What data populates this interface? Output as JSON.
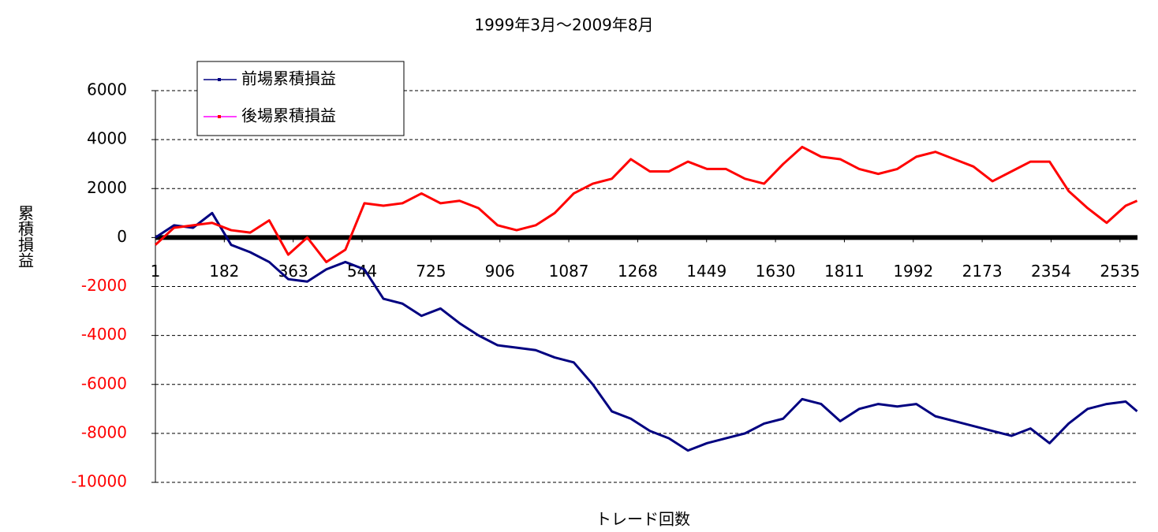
{
  "chart_data": {
    "type": "line",
    "title": "1999年3月〜2009年8月",
    "xlabel": "トレード回数",
    "ylabel": "累積損益",
    "x": [
      1,
      50,
      100,
      150,
      200,
      250,
      300,
      350,
      400,
      450,
      500,
      550,
      600,
      650,
      700,
      750,
      800,
      850,
      900,
      950,
      1000,
      1050,
      1100,
      1150,
      1200,
      1250,
      1300,
      1350,
      1400,
      1450,
      1500,
      1550,
      1600,
      1650,
      1700,
      1750,
      1800,
      1850,
      1900,
      1950,
      2000,
      2050,
      2100,
      2150,
      2200,
      2250,
      2300,
      2350,
      2400,
      2450,
      2500,
      2550,
      2580
    ],
    "series": [
      {
        "name": "前場累積損益",
        "color": "#000080",
        "values": [
          0,
          500,
          400,
          1000,
          -300,
          -600,
          -1000,
          -1700,
          -1800,
          -1300,
          -1000,
          -1300,
          -2500,
          -2700,
          -3200,
          -2900,
          -3500,
          -4000,
          -4400,
          -4500,
          -4600,
          -4900,
          -5100,
          -6000,
          -7100,
          -7400,
          -7900,
          -8200,
          -8700,
          -8400,
          -8200,
          -8000,
          -7600,
          -7400,
          -6600,
          -6800,
          -7500,
          -7000,
          -6800,
          -6900,
          -6800,
          -7300,
          -7500,
          -7700,
          -7900,
          -8100,
          -7800,
          -8400,
          -7600,
          -7000,
          -6800,
          -6700,
          -7100
        ]
      },
      {
        "name": "後場累積損益",
        "color": "#ff0000",
        "values": [
          -300,
          400,
          500,
          600,
          300,
          200,
          700,
          -700,
          0,
          -1000,
          -500,
          1400,
          1300,
          1400,
          1800,
          1400,
          1500,
          1200,
          500,
          300,
          500,
          1000,
          1800,
          2200,
          2400,
          3200,
          2700,
          2700,
          3100,
          2800,
          2800,
          2400,
          2200,
          3000,
          3700,
          3300,
          3200,
          2800,
          2600,
          2800,
          3300,
          3500,
          3200,
          2900,
          2300,
          2700,
          3100,
          3100,
          1900,
          1200,
          600,
          1300,
          1500
        ]
      }
    ],
    "xlim": [
      1,
      2581
    ],
    "xticks": [
      1,
      182,
      363,
      544,
      725,
      906,
      1087,
      1268,
      1449,
      1630,
      1811,
      1992,
      2173,
      2354,
      2535
    ],
    "ylim": [
      -10000,
      6000
    ],
    "yticks": [
      -10000,
      -8000,
      -6000,
      -4000,
      -2000,
      0,
      2000,
      4000,
      6000
    ],
    "ytick_negative_color": "#ff0000",
    "grid": true,
    "legend": "upper left"
  }
}
